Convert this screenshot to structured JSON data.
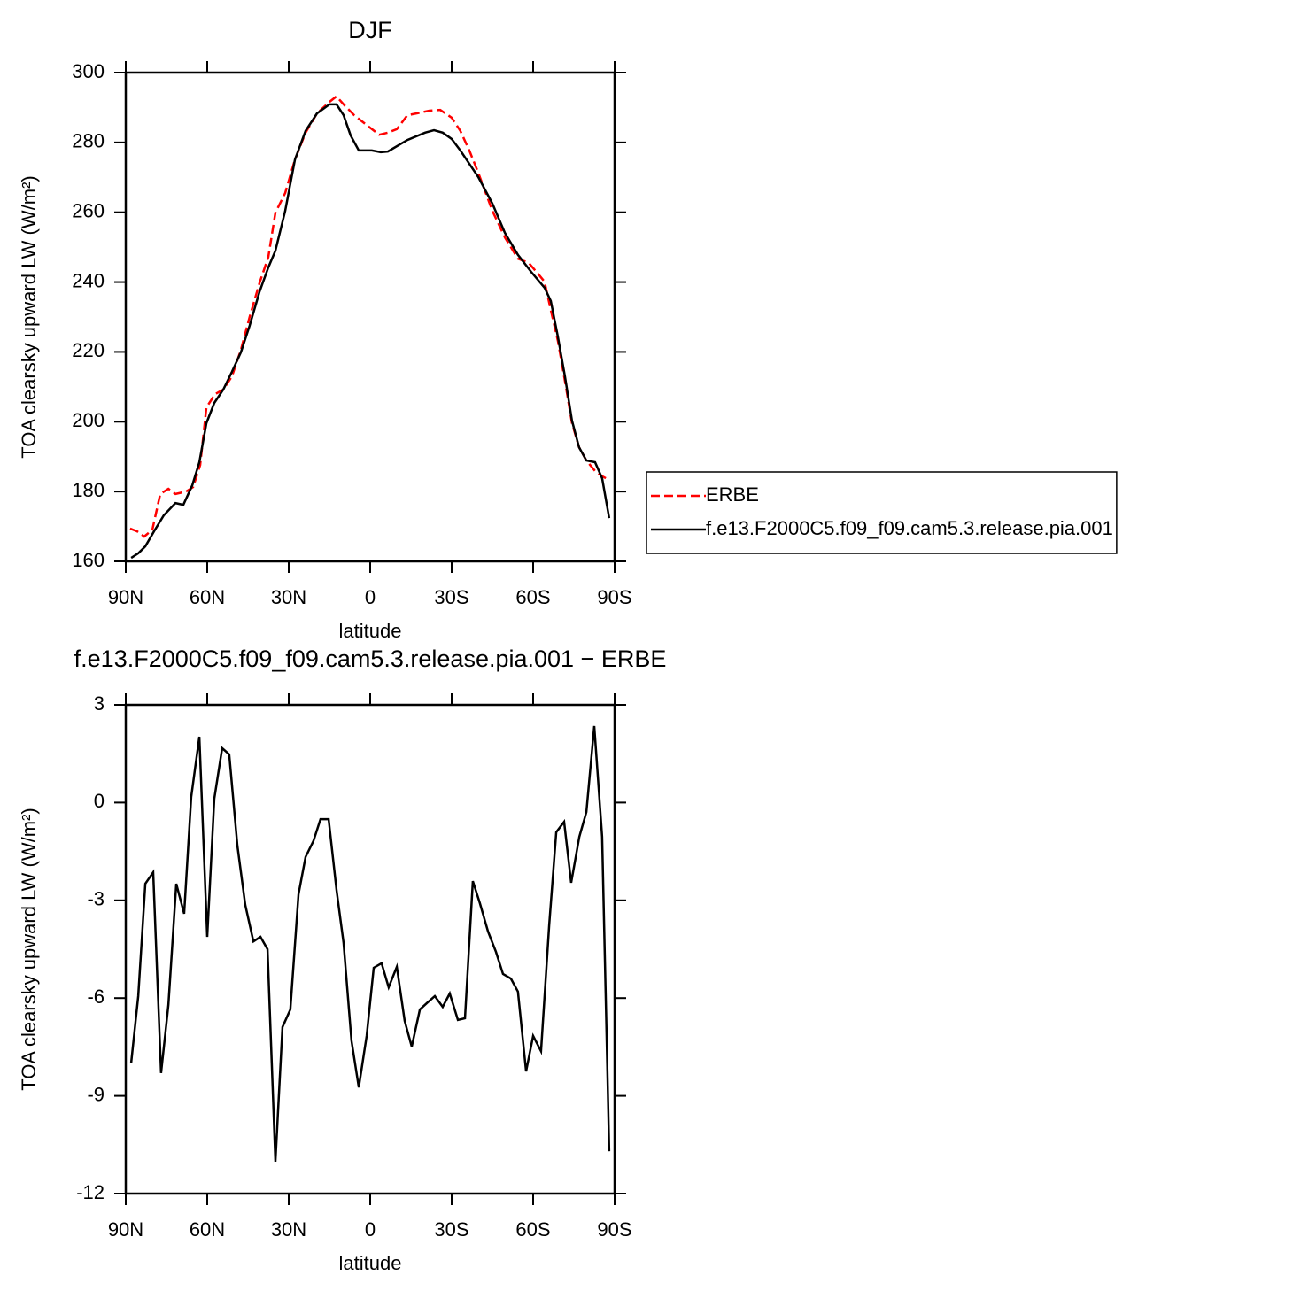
{
  "chart_data": [
    {
      "type": "line",
      "title": "DJF",
      "x_label": "latitude",
      "y_label": "TOA clearsky upward LW (W/m²)",
      "xlim": [
        90,
        -90
      ],
      "xticks": [
        {
          "value": 90,
          "label": "90N"
        },
        {
          "value": 60,
          "label": "60N"
        },
        {
          "value": 30,
          "label": "30N"
        },
        0,
        {
          "value": -30,
          "label": "30S"
        },
        {
          "value": -60,
          "label": "60S"
        },
        {
          "value": -90,
          "label": "90S"
        }
      ],
      "ylim": [
        160,
        300
      ],
      "yticks": [
        160,
        180,
        200,
        220,
        240,
        260,
        280,
        300
      ],
      "legend": "outside-right",
      "series": [
        {
          "name": "ERBE",
          "color": "#ff0000",
          "dash": "dashed",
          "x": [
            88.4,
            85.8,
            83.2,
            80.2,
            77.3,
            74.3,
            71.7,
            67.8,
            65.2,
            62.6,
            60.3,
            57.1,
            54.1,
            50.9,
            47.6,
            44.4,
            40.8,
            37.5,
            34.9,
            31.3,
            27.7,
            23.8,
            19.6,
            15.0,
            12.4,
            9.8,
            5.9,
            1.0,
            -3.3,
            -6.5,
            -9.8,
            -13.7,
            -17.0,
            -21.8,
            -25.8,
            -30.0,
            -33.2,
            -36.5,
            -39.8,
            -45.0,
            -49.6,
            -54.4,
            -58.4,
            -62.0,
            -64.2,
            -66.5,
            -69.1,
            -71.7,
            -74.3,
            -76.9,
            -79.6,
            -82.8,
            -85.4,
            -88.0
          ],
          "values": [
            169.4,
            168.6,
            167.1,
            169.1,
            179.3,
            180.8,
            179.3,
            180.0,
            181.3,
            187.6,
            204.1,
            207.9,
            209.2,
            213.0,
            220.6,
            230.0,
            239.6,
            247.2,
            259.9,
            265.5,
            275.1,
            282.8,
            288.3,
            291.6,
            293.2,
            290.9,
            287.8,
            284.8,
            282.2,
            282.8,
            283.8,
            287.8,
            288.3,
            289.1,
            289.3,
            287.1,
            283.3,
            277.7,
            271.3,
            260.4,
            252.8,
            246.7,
            245.5,
            242.2,
            240.1,
            232.0,
            223.2,
            211.7,
            199.6,
            192.7,
            188.9,
            185.9,
            184.4,
            183.3
          ]
        },
        {
          "name": "f.e13.F2000C5.f09_f09.cam5.3.release.pia.001",
          "color": "#000000",
          "dash": "solid",
          "x": [
            88.0,
            85.4,
            82.8,
            79.6,
            76.0,
            71.7,
            68.8,
            65.5,
            62.9,
            60.3,
            57.4,
            54.1,
            50.9,
            47.6,
            44.4,
            40.8,
            37.5,
            34.9,
            31.3,
            27.7,
            23.8,
            19.6,
            15.0,
            12.4,
            9.8,
            7.2,
            4.2,
            -0.6,
            -3.9,
            -6.5,
            -13.7,
            -20.2,
            -23.5,
            -26.7,
            -30.0,
            -33.2,
            -39.8,
            -45.0,
            -49.6,
            -54.4,
            -59.3,
            -64.2,
            -66.5,
            -69.1,
            -71.7,
            -74.3,
            -76.9,
            -79.6,
            -82.8,
            -85.4,
            -88.0
          ],
          "values": [
            161.0,
            162.3,
            164.3,
            168.6,
            173.2,
            176.7,
            176.2,
            181.8,
            188.4,
            199.6,
            205.4,
            209.2,
            214.3,
            219.9,
            227.5,
            237.1,
            244.2,
            249.0,
            260.4,
            275.1,
            283.3,
            288.3,
            290.9,
            290.9,
            287.8,
            282.0,
            277.7,
            277.7,
            277.2,
            277.4,
            280.7,
            282.8,
            283.5,
            282.8,
            281.0,
            277.7,
            270.1,
            262.5,
            254.1,
            247.8,
            242.9,
            238.4,
            234.6,
            224.4,
            213.0,
            200.3,
            192.7,
            188.9,
            188.4,
            183.8,
            172.4
          ]
        }
      ]
    },
    {
      "type": "line",
      "title": "f.e13.F2000C5.f09_f09.cam5.3.release.pia.001 − ERBE",
      "x_label": "latitude",
      "y_label": "TOA clearsky upward LW (W/m²)",
      "xlim": [
        90,
        -90
      ],
      "xticks": [
        {
          "value": 90,
          "label": "90N"
        },
        {
          "value": 60,
          "label": "60N"
        },
        {
          "value": 30,
          "label": "30N"
        },
        0,
        {
          "value": -30,
          "label": "30S"
        },
        {
          "value": -60,
          "label": "60S"
        },
        {
          "value": -90,
          "label": "90S"
        }
      ],
      "ylim": [
        -12,
        3
      ],
      "yticks": [
        -12,
        -9,
        -6,
        -3,
        0,
        3
      ],
      "series": [
        {
          "color": "#000000",
          "dash": "solid",
          "x": [
            88.0,
            85.4,
            82.8,
            79.9,
            77.0,
            74.3,
            71.4,
            68.5,
            65.9,
            62.9,
            60.0,
            57.4,
            54.5,
            51.9,
            48.9,
            46.0,
            43.0,
            40.4,
            37.8,
            34.9,
            32.3,
            29.4,
            26.4,
            23.8,
            20.9,
            18.3,
            15.3,
            12.4,
            9.8,
            6.9,
            4.2,
            1.3,
            -1.3,
            -4.2,
            -6.8,
            -9.8,
            -12.7,
            -15.3,
            -18.3,
            -21.2,
            -23.8,
            -26.7,
            -29.3,
            -32.3,
            -34.9,
            -37.8,
            -40.4,
            -43.4,
            -46.3,
            -48.9,
            -51.8,
            -54.4,
            -57.4,
            -60.0,
            -62.9,
            -65.9,
            -68.5,
            -71.4,
            -74.0,
            -77.0,
            -79.6,
            -82.5,
            -85.4,
            -88.0
          ],
          "values": [
            -7.98,
            -5.94,
            -2.49,
            -2.14,
            -8.3,
            -6.21,
            -2.49,
            -3.41,
            0.17,
            2.02,
            -4.12,
            0.12,
            1.67,
            1.48,
            -1.32,
            -3.14,
            -4.26,
            -4.12,
            -4.5,
            -11.02,
            -6.89,
            -6.35,
            -2.82,
            -1.67,
            -1.18,
            -0.51,
            -0.51,
            -2.68,
            -4.31,
            -7.3,
            -8.74,
            -7.16,
            -5.07,
            -4.93,
            -5.67,
            -5.04,
            -6.7,
            -7.49,
            -6.35,
            -6.13,
            -5.94,
            -6.27,
            -5.86,
            -6.67,
            -6.62,
            -2.41,
            -3.09,
            -3.96,
            -4.58,
            -5.26,
            -5.4,
            -5.8,
            -8.25,
            -7.16,
            -7.63,
            -3.77,
            -0.91,
            -0.59,
            -2.46,
            -1.05,
            -0.29,
            2.35,
            -1.05,
            -10.7
          ]
        }
      ]
    }
  ]
}
